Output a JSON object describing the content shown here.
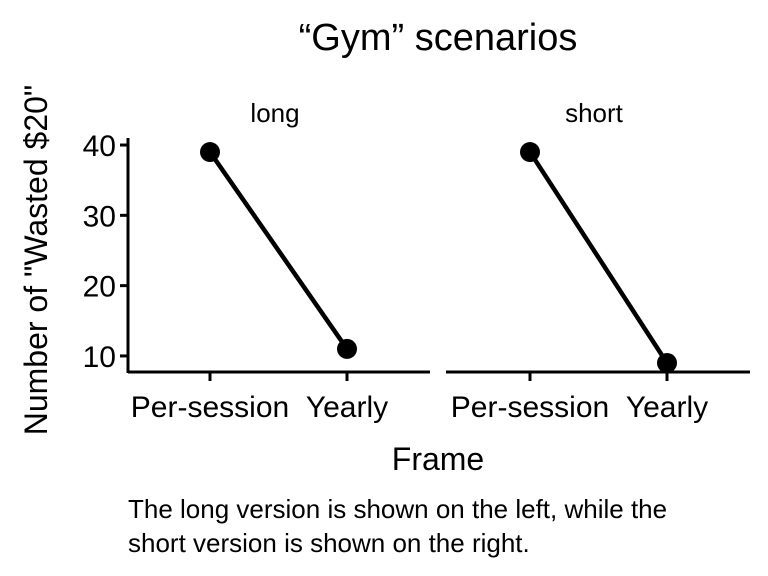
{
  "chart_data": {
    "type": "line",
    "title": "“Gym” scenarios",
    "xlabel": "Frame",
    "ylabel": "Number of \"Wasted $20\"",
    "categories": [
      "Per-session",
      "Yearly"
    ],
    "ylim": [
      8,
      41
    ],
    "yticks": [
      10,
      20,
      30,
      40
    ],
    "grid": false,
    "panels": [
      {
        "title": "long",
        "values": [
          39,
          11
        ]
      },
      {
        "title": "short",
        "values": [
          39,
          9
        ]
      }
    ]
  },
  "caption": {
    "line1": "The long version is shown on the left, while the",
    "line2": "short version is shown on the right."
  }
}
